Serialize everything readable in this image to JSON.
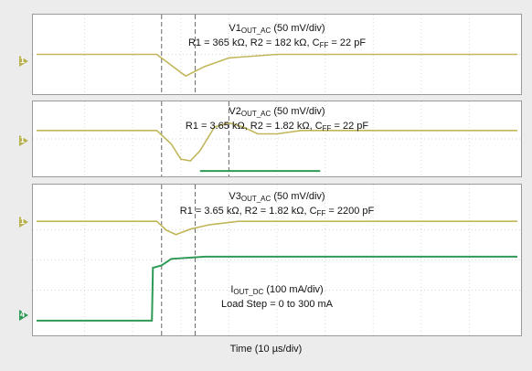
{
  "chart_data": [
    {
      "type": "line",
      "title_main": "V1",
      "title_sub": "OUT_AC",
      "title_scale": "(50 mV/div)",
      "params_text": "R1 = 365 kΩ, R2 = 182 kΩ, C",
      "params_sub": "FF",
      "params_tail": " = 22 pF",
      "channel_marker": "1",
      "series": [
        {
          "color": "#c2b65a",
          "x": [
            0,
            1,
            2,
            2.5,
            2.8,
            3.1,
            3.5,
            4,
            5,
            6,
            7,
            8,
            9,
            10
          ],
          "y": [
            0,
            0,
            0,
            0,
            -0.45,
            -0.9,
            -0.5,
            -0.15,
            0,
            0,
            0,
            0,
            0,
            0
          ]
        }
      ],
      "x_range": [
        0,
        10
      ],
      "y_range": [
        -1.5,
        1.5
      ]
    },
    {
      "type": "line",
      "title_main": "V2",
      "title_sub": "OUT_AC",
      "title_scale": "(50 mV/div)",
      "params_text": "R1 = 3.65 kΩ, R2 = 1.82 kΩ, C",
      "params_sub": "FF",
      "params_tail": " = 22 pF",
      "channel_marker": "1",
      "series": [
        {
          "color": "#c2b65a",
          "x": [
            0,
            1,
            2,
            2.5,
            2.8,
            3.0,
            3.2,
            3.4,
            3.7,
            4.0,
            4.3,
            4.6,
            5.0,
            5.5,
            6,
            7,
            8,
            9,
            10
          ],
          "y": [
            0,
            0,
            0,
            0,
            -0.8,
            -1.7,
            -1.8,
            -1.2,
            0.2,
            0.45,
            0.2,
            -0.2,
            -0.2,
            0,
            0,
            0,
            0,
            0,
            0
          ]
        },
        {
          "color": "#2e9a56",
          "x": [
            3.4,
            5.9
          ],
          "y": [
            -2.4,
            -2.4
          ]
        }
      ],
      "x_range": [
        0,
        10
      ],
      "y_range": [
        -2.5,
        1.5
      ]
    },
    {
      "type": "line",
      "title_main": "V3",
      "title_sub": "OUT_AC",
      "title_scale": "(50 mV/div)",
      "params_text": "R1 = 3.65 kΩ, R2 = 1.82 kΩ, C",
      "params_sub": "FF",
      "params_tail": " = 2200 pF",
      "load_main": "I",
      "load_sub": "OUT_DC",
      "load_scale": "(100 mA/div)",
      "load_step": "Load Step = 0 to 300 mA",
      "channel_marker": "1",
      "channel_marker_2": "4",
      "series": [
        {
          "color": "#c2b65a",
          "x": [
            0,
            1,
            2,
            2.5,
            2.7,
            2.9,
            3.2,
            3.6,
            4.2,
            5,
            6,
            7,
            8,
            9,
            10
          ],
          "y": [
            0,
            0,
            0,
            0,
            -0.4,
            -0.6,
            -0.35,
            -0.15,
            0,
            0,
            0,
            0,
            0,
            0,
            0
          ]
        },
        {
          "color": "#2e9a56",
          "x": [
            0,
            1,
            2,
            2.4,
            2.42,
            2.6,
            2.8,
            3.5,
            5,
            7,
            10
          ],
          "y": [
            -4.5,
            -4.5,
            -4.5,
            -4.5,
            -2.1,
            -2.0,
            -1.7,
            -1.6,
            -1.6,
            -1.6,
            -1.6
          ]
        }
      ],
      "x_range": [
        0,
        10
      ],
      "y_range": [
        -5,
        1.5
      ]
    }
  ],
  "xlabel": "Time",
  "xlabel_scale": "(10 µs/div)"
}
